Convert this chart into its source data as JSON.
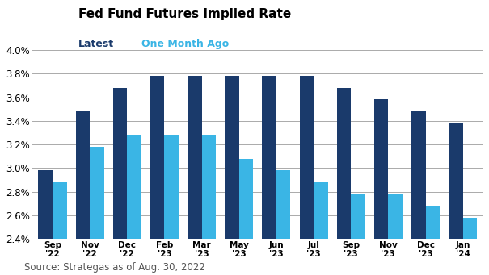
{
  "title": "Fed Fund Futures Implied Rate",
  "legend_latest": "Latest",
  "legend_one_month": "One Month Ago",
  "source": "Source: Strategas as of Aug. 30, 2022",
  "categories": [
    "Sep\n'22",
    "Nov\n'22",
    "Dec\n'22",
    "Feb\n'23",
    "Mar\n'23",
    "May\n'23",
    "Jun\n'23",
    "Jul\n'23",
    "Sep\n'23",
    "Nov\n'23",
    "Dec\n'23",
    "Jan\n'24"
  ],
  "latest": [
    2.98,
    3.48,
    3.68,
    3.78,
    3.78,
    3.78,
    3.78,
    3.78,
    3.68,
    3.58,
    3.48,
    3.38
  ],
  "one_month_ago": [
    2.88,
    3.18,
    3.28,
    3.28,
    3.28,
    3.08,
    2.98,
    2.88,
    2.78,
    2.78,
    2.68,
    2.58
  ],
  "latest_color": "#1a3a6b",
  "one_month_color": "#3ab5e5",
  "ylim": [
    2.4,
    4.05
  ],
  "yticks": [
    2.4,
    2.6,
    2.8,
    3.0,
    3.2,
    3.4,
    3.6,
    3.8,
    4.0
  ],
  "ytick_labels": [
    "2.4%",
    "2.6%",
    "2.8%",
    "3.0%",
    "3.2%",
    "3.4%",
    "3.6%",
    "3.8%",
    "4.0%"
  ],
  "background_color": "#ffffff",
  "title_fontsize": 11,
  "legend_fontsize": 9,
  "source_fontsize": 8.5,
  "bar_width": 0.38,
  "figsize": [
    6.05,
    3.41
  ],
  "dpi": 100
}
